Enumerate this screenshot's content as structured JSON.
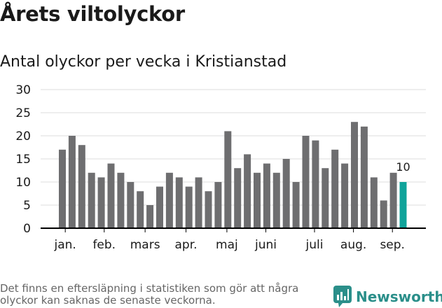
{
  "title": "Årets viltolyckor",
  "subtitle": "Antal olyckor per vecka i Kristianstad",
  "footnote": "Det finns en eftersläpning i statistiken som gör att några olyckor kan saknas de senaste veckorna.",
  "brand": {
    "name": "Newsworthy",
    "icon": "newsworthy-logo-icon"
  },
  "colors": {
    "bar": "#6e6e70",
    "highlight": "#10a39a",
    "grid": "#dddddd",
    "axis": "#000000",
    "text": "#1a1a1a",
    "brand": "#2b8f8a"
  },
  "chart_data": {
    "type": "bar",
    "ylim": [
      0,
      30
    ],
    "yticks": [
      0,
      5,
      10,
      15,
      20,
      25,
      30
    ],
    "grid": true,
    "values": [
      17,
      20,
      18,
      12,
      11,
      14,
      12,
      10,
      8,
      5,
      9,
      12,
      11,
      9,
      11,
      8,
      10,
      21,
      13,
      16,
      12,
      14,
      12,
      15,
      10,
      20,
      19,
      13,
      17,
      14,
      23,
      22,
      11,
      6,
      12,
      10
    ],
    "highlight_index": 35,
    "highlight_label": "10",
    "month_labels": [
      {
        "label": "jan.",
        "week": 0.3
      },
      {
        "label": "feb.",
        "week": 4.3
      },
      {
        "label": "mars",
        "week": 8.5
      },
      {
        "label": "apr.",
        "week": 12.7
      },
      {
        "label": "maj",
        "week": 16.9
      },
      {
        "label": "juni",
        "week": 20.9
      },
      {
        "label": "juli",
        "week": 25.9
      },
      {
        "label": "aug.",
        "week": 29.9
      },
      {
        "label": "sep.",
        "week": 33.9
      }
    ],
    "month_ticks": [
      0.3,
      4.3,
      8.5,
      12.7,
      16.9,
      20.9,
      25.9,
      29.9,
      33.9
    ]
  }
}
